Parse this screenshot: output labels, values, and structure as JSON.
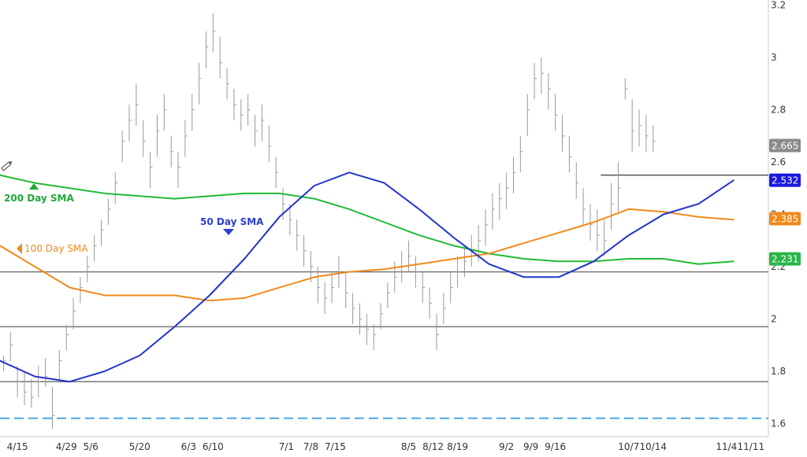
{
  "chart_data": {
    "type": "line",
    "y_ticks": [
      "3.2",
      "3",
      "2.8",
      "2.6",
      "2.4",
      "2.2",
      "2",
      "1.8",
      "1.6"
    ],
    "ylim": [
      1.55,
      3.22
    ],
    "x_ticks": [
      {
        "label": "4/15",
        "day": 15
      },
      {
        "label": "4/29",
        "day": 29
      },
      {
        "label": "5/6",
        "day": 36
      },
      {
        "label": "5/20",
        "day": 50
      },
      {
        "label": "6/3",
        "day": 64
      },
      {
        "label": "6/10",
        "day": 71
      },
      {
        "label": "7/1",
        "day": 92
      },
      {
        "label": "7/8",
        "day": 99
      },
      {
        "label": "7/15",
        "day": 106
      },
      {
        "label": "8/5",
        "day": 127
      },
      {
        "label": "8/12",
        "day": 134
      },
      {
        "label": "8/19",
        "day": 141
      },
      {
        "label": "9/2",
        "day": 155
      },
      {
        "label": "9/9",
        "day": 162
      },
      {
        "label": "9/16",
        "day": 169
      },
      {
        "label": "10/7",
        "day": 190
      },
      {
        "label": "10/14",
        "day": 197
      },
      {
        "label": "11/4",
        "day": 218
      },
      {
        "label": "11/11",
        "day": 225
      }
    ],
    "xlim": [
      10,
      230
    ],
    "series": [
      {
        "name": "200 Day SMA",
        "color": "#22bb33",
        "points": [
          [
            10,
            2.55
          ],
          [
            20,
            2.52
          ],
          [
            30,
            2.5
          ],
          [
            40,
            2.48
          ],
          [
            50,
            2.47
          ],
          [
            60,
            2.46
          ],
          [
            70,
            2.47
          ],
          [
            80,
            2.48
          ],
          [
            90,
            2.48
          ],
          [
            100,
            2.46
          ],
          [
            110,
            2.42
          ],
          [
            120,
            2.37
          ],
          [
            130,
            2.32
          ],
          [
            140,
            2.28
          ],
          [
            150,
            2.25
          ],
          [
            160,
            2.23
          ],
          [
            170,
            2.22
          ],
          [
            180,
            2.22
          ],
          [
            190,
            2.23
          ],
          [
            200,
            2.23
          ],
          [
            210,
            2.21
          ],
          [
            220,
            2.22
          ]
        ]
      },
      {
        "name": "100 Day SMA",
        "color": "#f08a1c",
        "points": [
          [
            10,
            2.28
          ],
          [
            20,
            2.2
          ],
          [
            30,
            2.12
          ],
          [
            40,
            2.09
          ],
          [
            50,
            2.09
          ],
          [
            60,
            2.09
          ],
          [
            70,
            2.07
          ],
          [
            80,
            2.08
          ],
          [
            90,
            2.12
          ],
          [
            100,
            2.16
          ],
          [
            110,
            2.18
          ],
          [
            120,
            2.19
          ],
          [
            130,
            2.21
          ],
          [
            140,
            2.23
          ],
          [
            150,
            2.25
          ],
          [
            160,
            2.29
          ],
          [
            170,
            2.33
          ],
          [
            180,
            2.37
          ],
          [
            190,
            2.42
          ],
          [
            200,
            2.41
          ],
          [
            210,
            2.39
          ],
          [
            220,
            2.38
          ]
        ]
      },
      {
        "name": "50 Day SMA",
        "color": "#2233cc",
        "points": [
          [
            10,
            1.84
          ],
          [
            20,
            1.78
          ],
          [
            30,
            1.76
          ],
          [
            40,
            1.8
          ],
          [
            50,
            1.86
          ],
          [
            60,
            1.97
          ],
          [
            70,
            2.09
          ],
          [
            80,
            2.23
          ],
          [
            90,
            2.39
          ],
          [
            100,
            2.51
          ],
          [
            110,
            2.56
          ],
          [
            120,
            2.52
          ],
          [
            130,
            2.42
          ],
          [
            140,
            2.31
          ],
          [
            150,
            2.21
          ],
          [
            160,
            2.16
          ],
          [
            170,
            2.16
          ],
          [
            180,
            2.22
          ],
          [
            190,
            2.32
          ],
          [
            200,
            2.4
          ],
          [
            210,
            2.44
          ],
          [
            220,
            2.53
          ]
        ]
      }
    ],
    "price_bars": [
      [
        11,
        1.86,
        1.8,
        1.84
      ],
      [
        13,
        1.95,
        1.84,
        1.9
      ],
      [
        15,
        1.82,
        1.7,
        1.76
      ],
      [
        17,
        1.8,
        1.67,
        1.72
      ],
      [
        19,
        1.77,
        1.66,
        1.7
      ],
      [
        21,
        1.82,
        1.7,
        1.76
      ],
      [
        23,
        1.85,
        1.74,
        1.78
      ],
      [
        25,
        1.74,
        1.58,
        1.63
      ],
      [
        27,
        1.88,
        1.76,
        1.84
      ],
      [
        29,
        1.98,
        1.88,
        1.94
      ],
      [
        31,
        2.08,
        1.96,
        2.03
      ],
      [
        33,
        2.16,
        2.06,
        2.12
      ],
      [
        35,
        2.24,
        2.14,
        2.2
      ],
      [
        37,
        2.32,
        2.22,
        2.28
      ],
      [
        39,
        2.38,
        2.28,
        2.34
      ],
      [
        41,
        2.46,
        2.36,
        2.42
      ],
      [
        43,
        2.56,
        2.44,
        2.52
      ],
      [
        45,
        2.72,
        2.6,
        2.68
      ],
      [
        47,
        2.82,
        2.68,
        2.76
      ],
      [
        49,
        2.9,
        2.74,
        2.82
      ],
      [
        51,
        2.76,
        2.62,
        2.68
      ],
      [
        53,
        2.64,
        2.5,
        2.58
      ],
      [
        55,
        2.78,
        2.62,
        2.72
      ],
      [
        57,
        2.86,
        2.72,
        2.8
      ],
      [
        59,
        2.7,
        2.58,
        2.64
      ],
      [
        61,
        2.64,
        2.5,
        2.58
      ],
      [
        63,
        2.76,
        2.62,
        2.7
      ],
      [
        65,
        2.86,
        2.72,
        2.8
      ],
      [
        67,
        2.98,
        2.82,
        2.92
      ],
      [
        69,
        3.1,
        2.96,
        3.04
      ],
      [
        71,
        3.17,
        3.02,
        3.1
      ],
      [
        73,
        3.08,
        2.92,
        2.98
      ],
      [
        75,
        2.96,
        2.84,
        2.9
      ],
      [
        77,
        2.88,
        2.76,
        2.82
      ],
      [
        79,
        2.84,
        2.72,
        2.78
      ],
      [
        81,
        2.86,
        2.74,
        2.8
      ],
      [
        83,
        2.78,
        2.66,
        2.72
      ],
      [
        85,
        2.82,
        2.68,
        2.76
      ],
      [
        87,
        2.74,
        2.6,
        2.66
      ],
      [
        89,
        2.62,
        2.5,
        2.56
      ],
      [
        91,
        2.5,
        2.38,
        2.44
      ],
      [
        93,
        2.44,
        2.32,
        2.38
      ],
      [
        95,
        2.38,
        2.26,
        2.32
      ],
      [
        97,
        2.32,
        2.2,
        2.26
      ],
      [
        99,
        2.26,
        2.14,
        2.2
      ],
      [
        101,
        2.2,
        2.06,
        2.12
      ],
      [
        103,
        2.14,
        2.02,
        2.08
      ],
      [
        105,
        2.18,
        2.06,
        2.12
      ],
      [
        107,
        2.24,
        2.12,
        2.18
      ],
      [
        109,
        2.18,
        2.04,
        2.1
      ],
      [
        111,
        2.1,
        1.98,
        2.04
      ],
      [
        113,
        2.06,
        1.94,
        2.0
      ],
      [
        115,
        2.02,
        1.9,
        1.96
      ],
      [
        117,
        1.98,
        1.88,
        1.94
      ],
      [
        119,
        2.06,
        1.96,
        2.02
      ],
      [
        121,
        2.14,
        2.04,
        2.1
      ],
      [
        123,
        2.22,
        2.1,
        2.16
      ],
      [
        125,
        2.26,
        2.14,
        2.2
      ],
      [
        127,
        2.3,
        2.18,
        2.24
      ],
      [
        129,
        2.24,
        2.12,
        2.18
      ],
      [
        131,
        2.18,
        2.06,
        2.12
      ],
      [
        133,
        2.12,
        2.0,
        2.06
      ],
      [
        135,
        2.02,
        1.88,
        1.94
      ],
      [
        137,
        2.1,
        1.98,
        2.04
      ],
      [
        139,
        2.18,
        2.06,
        2.12
      ],
      [
        141,
        2.24,
        2.12,
        2.18
      ],
      [
        143,
        2.28,
        2.16,
        2.22
      ],
      [
        145,
        2.32,
        2.2,
        2.26
      ],
      [
        147,
        2.36,
        2.22,
        2.3
      ],
      [
        149,
        2.42,
        2.28,
        2.36
      ],
      [
        151,
        2.48,
        2.34,
        2.42
      ],
      [
        153,
        2.52,
        2.38,
        2.46
      ],
      [
        155,
        2.56,
        2.42,
        2.5
      ],
      [
        157,
        2.62,
        2.48,
        2.56
      ],
      [
        159,
        2.7,
        2.56,
        2.64
      ],
      [
        161,
        2.86,
        2.7,
        2.8
      ],
      [
        163,
        2.98,
        2.84,
        2.92
      ],
      [
        165,
        3.0,
        2.86,
        2.94
      ],
      [
        167,
        2.94,
        2.8,
        2.88
      ],
      [
        169,
        2.86,
        2.72,
        2.78
      ],
      [
        171,
        2.78,
        2.64,
        2.7
      ],
      [
        173,
        2.7,
        2.56,
        2.62
      ],
      [
        175,
        2.6,
        2.46,
        2.52
      ],
      [
        177,
        2.5,
        2.36,
        2.42
      ],
      [
        179,
        2.44,
        2.3,
        2.36
      ],
      [
        181,
        2.42,
        2.26,
        2.32
      ],
      [
        183,
        2.38,
        2.24,
        2.3
      ],
      [
        185,
        2.52,
        2.34,
        2.44
      ],
      [
        187,
        2.6,
        2.4,
        2.5
      ],
      [
        189,
        2.92,
        2.84,
        2.88
      ],
      [
        191,
        2.84,
        2.64,
        2.72
      ],
      [
        193,
        2.8,
        2.66,
        2.74
      ],
      [
        195,
        2.78,
        2.64,
        2.7
      ],
      [
        197,
        2.74,
        2.64,
        2.68
      ]
    ],
    "price_color": "#999999",
    "horizontal_levels": [
      {
        "y": 2.18,
        "style": "solid",
        "color": "#777777"
      },
      {
        "y": 1.97,
        "style": "solid",
        "color": "#777777"
      },
      {
        "y": 1.76,
        "style": "solid",
        "color": "#777777"
      },
      {
        "y": 1.62,
        "style": "dashed",
        "color": "#4aa8e0"
      }
    ],
    "short_line": {
      "y": 2.55,
      "from_day": 182,
      "color": "#555555"
    },
    "value_badges": [
      {
        "value": "2.665",
        "y": 2.665,
        "color": "#8a8a8a"
      },
      {
        "value": "2.532",
        "y": 2.532,
        "color": "#1a1adf"
      },
      {
        "value": "2.385",
        "y": 2.385,
        "color": "#f08a1c"
      },
      {
        "value": "2.231",
        "y": 2.231,
        "color": "#2ab54a"
      }
    ],
    "annotations": [
      {
        "text": "200 Day SMA",
        "color": "#1fa83a",
        "marker": "up-triangle"
      },
      {
        "text": "100  Day SMA",
        "color": "#f08a1c",
        "marker": "left-triangle"
      },
      {
        "text": "50 Day SMA",
        "color": "#2b3fcc",
        "marker": "down-triangle"
      }
    ]
  }
}
